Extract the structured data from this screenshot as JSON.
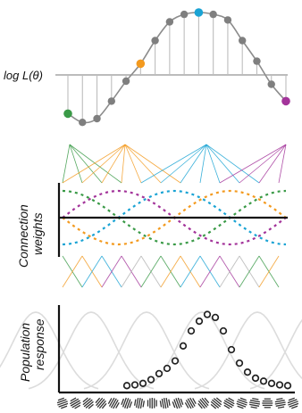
{
  "labels": {
    "loglik": "log L(θ)",
    "weights_line1": "Connection",
    "weights_line2": "weights",
    "response_line1": "Population",
    "response_line2": "response"
  },
  "colors": {
    "green": "#3a9a47",
    "orange": "#f39a1f",
    "blue": "#1aa3d4",
    "purple": "#a3349a",
    "curve": "#8c8c8c",
    "dot": "#7f7f7f",
    "axis": "#111111",
    "faint": "#dcdcdc"
  },
  "loglik_points": [
    -0.62,
    -0.76,
    -0.7,
    -0.42,
    -0.1,
    0.18,
    0.55,
    0.85,
    0.97,
    1.0,
    0.97,
    0.88,
    0.55,
    0.22,
    -0.15,
    -0.42
  ],
  "highlight_points": [
    {
      "index": 0,
      "color": "green"
    },
    {
      "index": 5,
      "color": "orange"
    },
    {
      "index": 9,
      "color": "blue"
    },
    {
      "index": 15,
      "color": "purple"
    }
  ],
  "population_response": [
    0.02,
    0.03,
    0.05,
    0.1,
    0.18,
    0.25,
    0.35,
    0.55,
    0.75,
    0.88,
    0.97,
    0.93,
    0.75,
    0.5,
    0.32,
    0.2,
    0.12,
    0.08,
    0.05,
    0.03,
    0.02
  ]
}
